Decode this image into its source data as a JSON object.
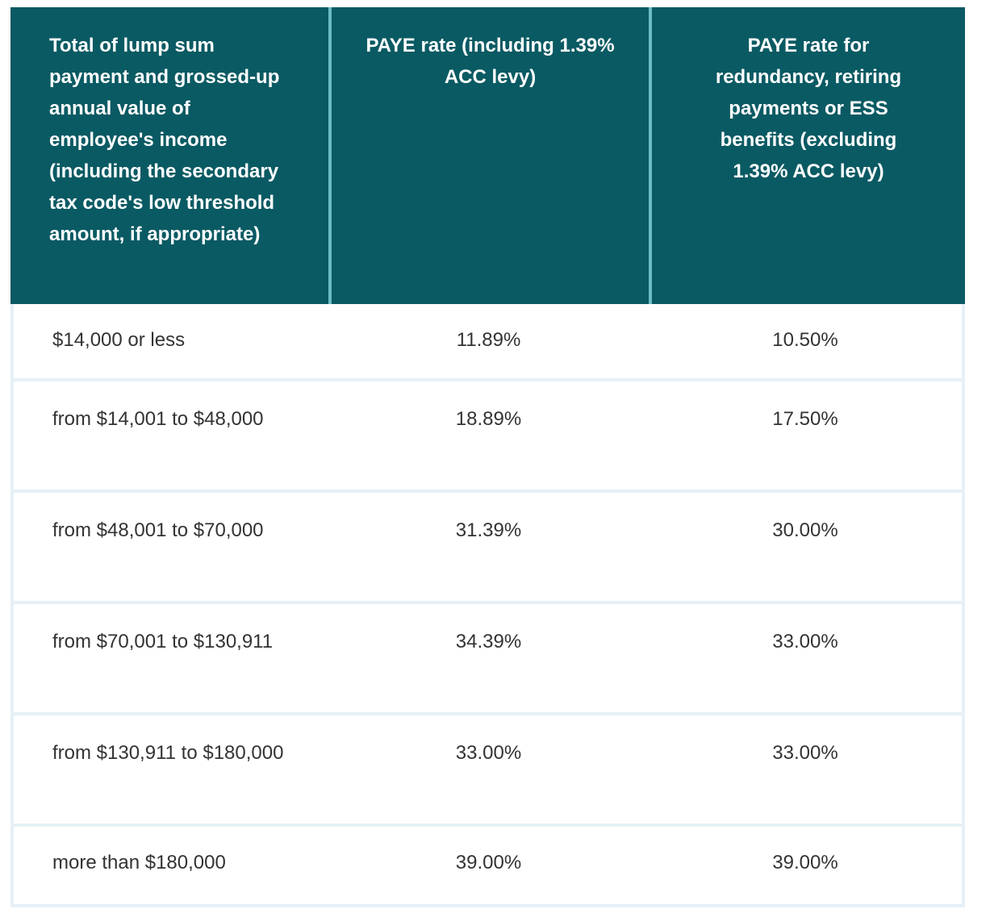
{
  "colors": {
    "header_bg": "#0a5a63",
    "header_divider": "#6bbcc4",
    "row_border": "#e6f0f6",
    "text": "#333333"
  },
  "headers": [
    "Total of lump sum payment and grossed-up annual value of employee's income (including the secondary tax code's low threshold amount, if appropriate)",
    "PAYE rate (including 1.39% ACC levy)",
    "PAYE rate for redundancy, retiring payments or ESS benefits (excluding 1.39% ACC levy)"
  ],
  "rows": [
    [
      "$14,000 or less",
      "11.89%",
      "10.50%"
    ],
    [
      "from $14,001 to $48,000",
      "18.89%",
      "17.50%"
    ],
    [
      "from $48,001 to $70,000",
      "31.39%",
      "30.00%"
    ],
    [
      "from $70,001 to $130,911",
      "34.39%",
      "33.00%"
    ],
    [
      "from $130,911 to $180,000",
      "33.00%",
      "33.00%"
    ],
    [
      "more than $180,000",
      "39.00%",
      "39.00%"
    ]
  ]
}
